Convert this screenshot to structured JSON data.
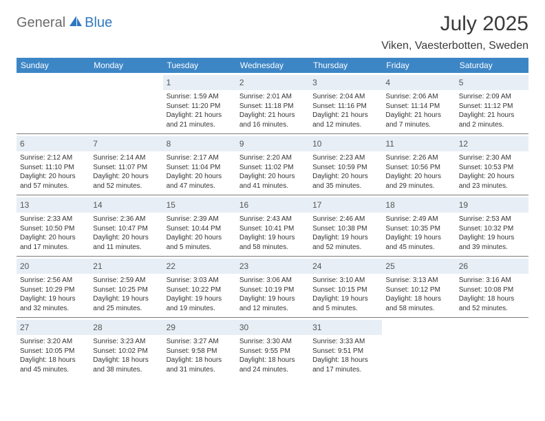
{
  "logo": {
    "part1": "General",
    "part2": "Blue"
  },
  "title": "July 2025",
  "location": "Viken, Vaesterbotten, Sweden",
  "weekdays": [
    "Sunday",
    "Monday",
    "Tuesday",
    "Wednesday",
    "Thursday",
    "Friday",
    "Saturday"
  ],
  "colors": {
    "header_bg": "#3d86c6",
    "daynum_bg": "#e7eef5",
    "week_border": "#7a7a7a",
    "logo_gray": "#6b6b6b",
    "logo_blue": "#2f78bf"
  },
  "weeks": [
    [
      null,
      null,
      {
        "n": "1",
        "sr": "Sunrise: 1:59 AM",
        "ss": "Sunset: 11:20 PM",
        "d1": "Daylight: 21 hours",
        "d2": "and 21 minutes."
      },
      {
        "n": "2",
        "sr": "Sunrise: 2:01 AM",
        "ss": "Sunset: 11:18 PM",
        "d1": "Daylight: 21 hours",
        "d2": "and 16 minutes."
      },
      {
        "n": "3",
        "sr": "Sunrise: 2:04 AM",
        "ss": "Sunset: 11:16 PM",
        "d1": "Daylight: 21 hours",
        "d2": "and 12 minutes."
      },
      {
        "n": "4",
        "sr": "Sunrise: 2:06 AM",
        "ss": "Sunset: 11:14 PM",
        "d1": "Daylight: 21 hours",
        "d2": "and 7 minutes."
      },
      {
        "n": "5",
        "sr": "Sunrise: 2:09 AM",
        "ss": "Sunset: 11:12 PM",
        "d1": "Daylight: 21 hours",
        "d2": "and 2 minutes."
      }
    ],
    [
      {
        "n": "6",
        "sr": "Sunrise: 2:12 AM",
        "ss": "Sunset: 11:10 PM",
        "d1": "Daylight: 20 hours",
        "d2": "and 57 minutes."
      },
      {
        "n": "7",
        "sr": "Sunrise: 2:14 AM",
        "ss": "Sunset: 11:07 PM",
        "d1": "Daylight: 20 hours",
        "d2": "and 52 minutes."
      },
      {
        "n": "8",
        "sr": "Sunrise: 2:17 AM",
        "ss": "Sunset: 11:04 PM",
        "d1": "Daylight: 20 hours",
        "d2": "and 47 minutes."
      },
      {
        "n": "9",
        "sr": "Sunrise: 2:20 AM",
        "ss": "Sunset: 11:02 PM",
        "d1": "Daylight: 20 hours",
        "d2": "and 41 minutes."
      },
      {
        "n": "10",
        "sr": "Sunrise: 2:23 AM",
        "ss": "Sunset: 10:59 PM",
        "d1": "Daylight: 20 hours",
        "d2": "and 35 minutes."
      },
      {
        "n": "11",
        "sr": "Sunrise: 2:26 AM",
        "ss": "Sunset: 10:56 PM",
        "d1": "Daylight: 20 hours",
        "d2": "and 29 minutes."
      },
      {
        "n": "12",
        "sr": "Sunrise: 2:30 AM",
        "ss": "Sunset: 10:53 PM",
        "d1": "Daylight: 20 hours",
        "d2": "and 23 minutes."
      }
    ],
    [
      {
        "n": "13",
        "sr": "Sunrise: 2:33 AM",
        "ss": "Sunset: 10:50 PM",
        "d1": "Daylight: 20 hours",
        "d2": "and 17 minutes."
      },
      {
        "n": "14",
        "sr": "Sunrise: 2:36 AM",
        "ss": "Sunset: 10:47 PM",
        "d1": "Daylight: 20 hours",
        "d2": "and 11 minutes."
      },
      {
        "n": "15",
        "sr": "Sunrise: 2:39 AM",
        "ss": "Sunset: 10:44 PM",
        "d1": "Daylight: 20 hours",
        "d2": "and 5 minutes."
      },
      {
        "n": "16",
        "sr": "Sunrise: 2:43 AM",
        "ss": "Sunset: 10:41 PM",
        "d1": "Daylight: 19 hours",
        "d2": "and 58 minutes."
      },
      {
        "n": "17",
        "sr": "Sunrise: 2:46 AM",
        "ss": "Sunset: 10:38 PM",
        "d1": "Daylight: 19 hours",
        "d2": "and 52 minutes."
      },
      {
        "n": "18",
        "sr": "Sunrise: 2:49 AM",
        "ss": "Sunset: 10:35 PM",
        "d1": "Daylight: 19 hours",
        "d2": "and 45 minutes."
      },
      {
        "n": "19",
        "sr": "Sunrise: 2:53 AM",
        "ss": "Sunset: 10:32 PM",
        "d1": "Daylight: 19 hours",
        "d2": "and 39 minutes."
      }
    ],
    [
      {
        "n": "20",
        "sr": "Sunrise: 2:56 AM",
        "ss": "Sunset: 10:29 PM",
        "d1": "Daylight: 19 hours",
        "d2": "and 32 minutes."
      },
      {
        "n": "21",
        "sr": "Sunrise: 2:59 AM",
        "ss": "Sunset: 10:25 PM",
        "d1": "Daylight: 19 hours",
        "d2": "and 25 minutes."
      },
      {
        "n": "22",
        "sr": "Sunrise: 3:03 AM",
        "ss": "Sunset: 10:22 PM",
        "d1": "Daylight: 19 hours",
        "d2": "and 19 minutes."
      },
      {
        "n": "23",
        "sr": "Sunrise: 3:06 AM",
        "ss": "Sunset: 10:19 PM",
        "d1": "Daylight: 19 hours",
        "d2": "and 12 minutes."
      },
      {
        "n": "24",
        "sr": "Sunrise: 3:10 AM",
        "ss": "Sunset: 10:15 PM",
        "d1": "Daylight: 19 hours",
        "d2": "and 5 minutes."
      },
      {
        "n": "25",
        "sr": "Sunrise: 3:13 AM",
        "ss": "Sunset: 10:12 PM",
        "d1": "Daylight: 18 hours",
        "d2": "and 58 minutes."
      },
      {
        "n": "26",
        "sr": "Sunrise: 3:16 AM",
        "ss": "Sunset: 10:08 PM",
        "d1": "Daylight: 18 hours",
        "d2": "and 52 minutes."
      }
    ],
    [
      {
        "n": "27",
        "sr": "Sunrise: 3:20 AM",
        "ss": "Sunset: 10:05 PM",
        "d1": "Daylight: 18 hours",
        "d2": "and 45 minutes."
      },
      {
        "n": "28",
        "sr": "Sunrise: 3:23 AM",
        "ss": "Sunset: 10:02 PM",
        "d1": "Daylight: 18 hours",
        "d2": "and 38 minutes."
      },
      {
        "n": "29",
        "sr": "Sunrise: 3:27 AM",
        "ss": "Sunset: 9:58 PM",
        "d1": "Daylight: 18 hours",
        "d2": "and 31 minutes."
      },
      {
        "n": "30",
        "sr": "Sunrise: 3:30 AM",
        "ss": "Sunset: 9:55 PM",
        "d1": "Daylight: 18 hours",
        "d2": "and 24 minutes."
      },
      {
        "n": "31",
        "sr": "Sunrise: 3:33 AM",
        "ss": "Sunset: 9:51 PM",
        "d1": "Daylight: 18 hours",
        "d2": "and 17 minutes."
      },
      null,
      null
    ]
  ]
}
